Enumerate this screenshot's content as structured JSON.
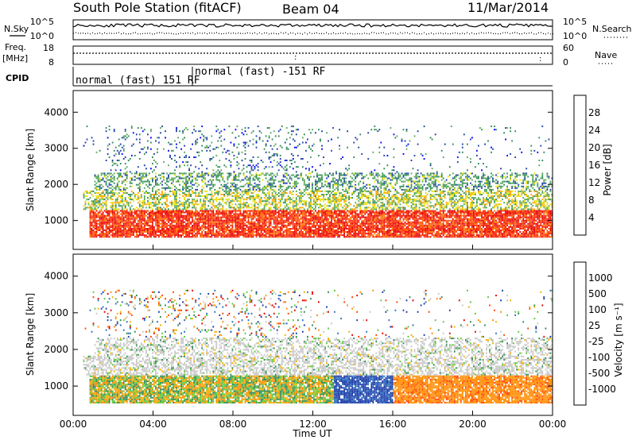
{
  "header": {
    "station": "South Pole Station (fitACF)",
    "beam": "Beam 04",
    "date": "11/Mar/2014"
  },
  "left_labels": {
    "nsky": "N.Sky",
    "freq": "Freq.",
    "mhz": "[MHz]",
    "cpid": "CPID"
  },
  "right_labels": {
    "nsearch": "N.Search",
    "nave": "Nave"
  },
  "noise_panel": {
    "ticks_left": [
      "10^5",
      "10^0"
    ],
    "ticks_right": [
      "10^5",
      "10^0"
    ]
  },
  "freq_panel": {
    "ticks_left": [
      "18",
      "8"
    ],
    "ticks_right": [
      "60",
      "0"
    ]
  },
  "cpid_panel": {
    "modes": [
      {
        "label": "normal (fast) 151 RF",
        "start_hour": 0
      },
      {
        "label": "normal (fast) -151 RF",
        "start_hour": 6
      }
    ]
  },
  "colors": {
    "power_scale": [
      "#0000ff",
      "#1c3ea8",
      "#2e8b57",
      "#5aa85a",
      "#e8e000",
      "#ffa500",
      "#ff6a00",
      "#ff2a00",
      "#e60000"
    ],
    "velocity_scale": [
      "#1a3aa8",
      "#2d6fc0",
      "#2e8b57",
      "#5cc83c",
      "#c8c8c8",
      "#f0b000",
      "#ff8c00",
      "#ff4400",
      "#e60000"
    ]
  },
  "chart_data": [
    {
      "type": "heatmap",
      "name": "power",
      "xlabel": "",
      "ylabel": "Slant Range [km]",
      "xlim": [
        0,
        24
      ],
      "ylim": [
        200,
        4600
      ],
      "y_ticks": [
        1000,
        2000,
        3000,
        4000
      ],
      "colorbar": {
        "label": "Power [dB]",
        "ticks": [
          4,
          8,
          12,
          16,
          20,
          24,
          28
        ],
        "range": [
          0,
          32
        ]
      },
      "bands": [
        {
          "t0": 0.8,
          "t1": 24,
          "r0": 500,
          "r1": 1250,
          "level": 0.95
        },
        {
          "t0": 0.6,
          "t1": 24,
          "r0": 1300,
          "r1": 1800,
          "level": 0.45
        },
        {
          "t0": 1.0,
          "t1": 24,
          "r0": 1800,
          "r1": 2300,
          "level": 0.25
        },
        {
          "t0": 1.5,
          "t1": 12,
          "r0": 2300,
          "r1": 3600,
          "level": 0.15
        }
      ]
    },
    {
      "type": "heatmap",
      "name": "velocity",
      "xlabel": "Time UT",
      "ylabel": "Slant Range [km]",
      "xlim": [
        0,
        24
      ],
      "ylim": [
        200,
        4600
      ],
      "x_ticks": [
        "00:00",
        "04:00",
        "08:00",
        "12:00",
        "16:00",
        "20:00",
        "00:00"
      ],
      "y_ticks": [
        1000,
        2000,
        3000,
        4000
      ],
      "colorbar": {
        "label": "Velocity [m s⁻¹]",
        "ticks": [
          "1000",
          "500",
          "100",
          "25",
          "-25",
          "-100",
          "-500",
          "-1000"
        ]
      },
      "bands": [
        {
          "t0": 0.8,
          "t1": 13,
          "r0": 500,
          "r1": 1250,
          "level": "mixed-green-orange"
        },
        {
          "t0": 13,
          "t1": 16,
          "r0": 500,
          "r1": 1250,
          "level": "blue"
        },
        {
          "t0": 16,
          "t1": 24,
          "r0": 500,
          "r1": 1250,
          "level": "orange"
        },
        {
          "t0": 0.6,
          "t1": 24,
          "r0": 1300,
          "r1": 2300,
          "level": "grey"
        }
      ]
    }
  ]
}
